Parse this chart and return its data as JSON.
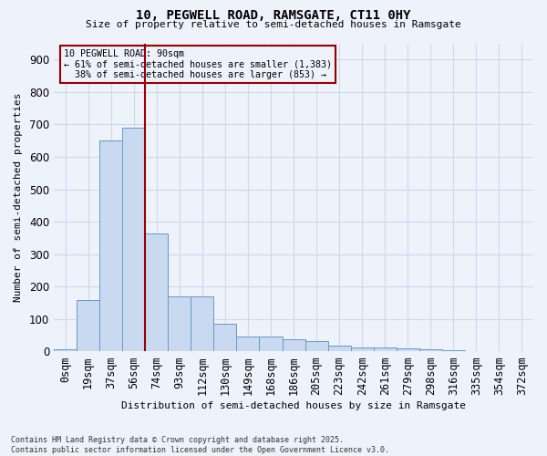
{
  "title_line1": "10, PEGWELL ROAD, RAMSGATE, CT11 0HY",
  "title_line2": "Size of property relative to semi-detached houses in Ramsgate",
  "xlabel": "Distribution of semi-detached houses by size in Ramsgate",
  "ylabel": "Number of semi-detached properties",
  "bar_color": "#c9d9f0",
  "bar_edge_color": "#6699cc",
  "background_color": "#edf2fb",
  "grid_color": "#d0d8e8",
  "categories": [
    "0sqm",
    "19sqm",
    "37sqm",
    "56sqm",
    "74sqm",
    "93sqm",
    "112sqm",
    "130sqm",
    "149sqm",
    "168sqm",
    "186sqm",
    "205sqm",
    "223sqm",
    "242sqm",
    "261sqm",
    "279sqm",
    "298sqm",
    "316sqm",
    "335sqm",
    "354sqm",
    "372sqm"
  ],
  "values": [
    8,
    160,
    650,
    690,
    365,
    170,
    170,
    85,
    47,
    47,
    37,
    32,
    17,
    13,
    13,
    10,
    8,
    3,
    0,
    0,
    0
  ],
  "property_size": "90sqm",
  "pct_smaller": 61,
  "n_smaller": 1383,
  "pct_larger": 38,
  "n_larger": 853,
  "red_line_color": "#990000",
  "red_line_xidx": 3.5,
  "footnote": "Contains HM Land Registry data © Crown copyright and database right 2025.\nContains public sector information licensed under the Open Government Licence v3.0.",
  "ylim": [
    0,
    950
  ],
  "yticks": [
    0,
    100,
    200,
    300,
    400,
    500,
    600,
    700,
    800,
    900
  ],
  "ann_label": "10 PEGWELL ROAD: 90sqm",
  "ann_line2": "← 61% of semi-detached houses are smaller (1,383)",
  "ann_line3": "38% of semi-detached houses are larger (853) →"
}
